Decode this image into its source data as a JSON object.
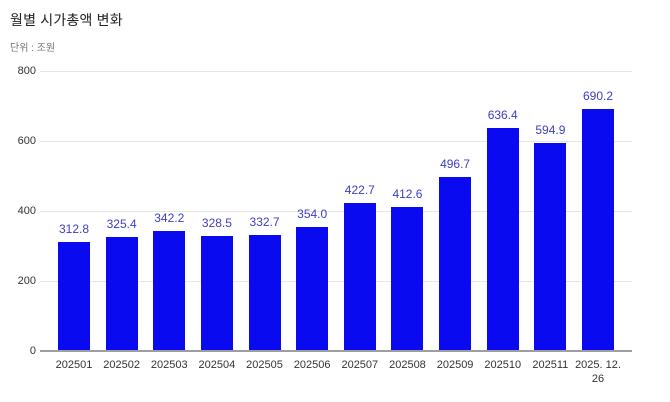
{
  "chart": {
    "title": "월별 시가총액 변화",
    "subtitle": "단위 : 조원"
  },
  "chart_data": {
    "type": "bar",
    "title": "월별 시가총액 변화",
    "subtitle": "단위 : 조원",
    "categories": [
      "202501",
      "202502",
      "202503",
      "202504",
      "202505",
      "202506",
      "202507",
      "202508",
      "202509",
      "202510",
      "202511",
      "2025. 12. 26"
    ],
    "values": [
      312.8,
      325.4,
      342.2,
      328.5,
      332.7,
      354.0,
      422.7,
      412.6,
      496.7,
      636.4,
      594.9,
      690.2
    ],
    "value_labels": [
      "312.8",
      "325.4",
      "342.2",
      "328.5",
      "332.7",
      "354.0",
      "422.7",
      "412.6",
      "496.7",
      "636.4",
      "594.9",
      "690.2"
    ],
    "xlabel": "",
    "ylabel": "",
    "ylim": [
      0,
      800
    ],
    "yticks": [
      0,
      200,
      400,
      600,
      800
    ],
    "grid": "horizontal",
    "legend": "none",
    "colors": {
      "bar": "#0a0af0",
      "value_label": "#3d3dc2",
      "title": "#212121",
      "subtitle": "#717171",
      "axis_tick_label": "#333333",
      "baseline": "#9e9e9e",
      "gridline": "#e6e6e6",
      "background": "#ffffff"
    }
  }
}
